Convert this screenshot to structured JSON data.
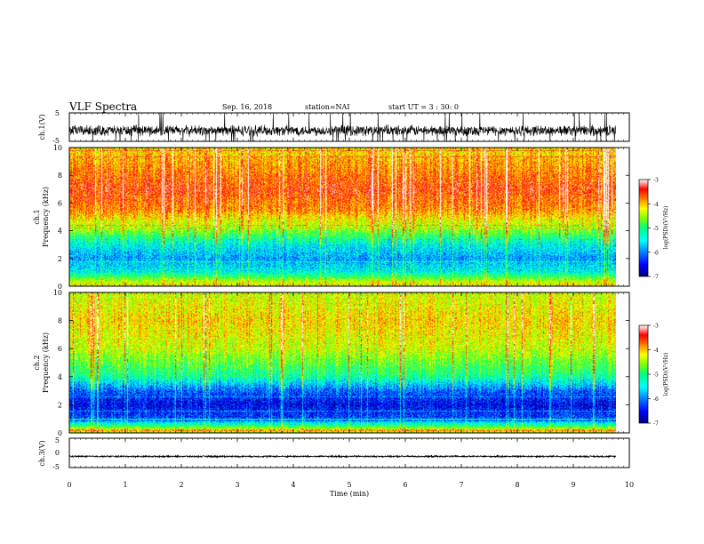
{
  "header": {
    "title": "VLF Spectra",
    "date": "Sep. 16, 2018",
    "station": "station=NAI",
    "start": "start  UT =  3 : 30: 0"
  },
  "chart_data": [
    {
      "type": "line",
      "name": "ch1-waveform",
      "ylabel": "ch.1(V)",
      "ylim": [
        -5,
        5
      ],
      "yticks": [
        "5",
        "-5"
      ],
      "xlim": [
        0,
        9.8
      ],
      "baseline_v": -1.2,
      "noise_amplitude_v": 2.2
    },
    {
      "type": "heatmap",
      "name": "ch1-spectrogram",
      "ylabel": "ch.1\nFrequency  (kHz)",
      "ylim": [
        0,
        10
      ],
      "yticks": [
        "0",
        "2",
        "4",
        "6",
        "8",
        "10"
      ],
      "xlim": [
        0,
        9.8
      ],
      "colorbar": {
        "label": "log(PSD)(V²/Hz)",
        "range": [
          -7,
          -3
        ],
        "ticks": [
          "-3",
          "-4",
          "-5",
          "-6",
          "-7"
        ]
      },
      "mean_profile": [
        {
          "freq_khz": 0.2,
          "log_psd": -4.4
        },
        {
          "freq_khz": 1.0,
          "log_psd": -5.6
        },
        {
          "freq_khz": 2.0,
          "log_psd": -6.0
        },
        {
          "freq_khz": 3.0,
          "log_psd": -5.6
        },
        {
          "freq_khz": 4.0,
          "log_psd": -4.8
        },
        {
          "freq_khz": 5.5,
          "log_psd": -3.9
        },
        {
          "freq_khz": 7.0,
          "log_psd": -3.6
        },
        {
          "freq_khz": 9.0,
          "log_psd": -4.0
        },
        {
          "freq_khz": 10.0,
          "log_psd": -4.3
        }
      ]
    },
    {
      "type": "heatmap",
      "name": "ch2-spectrogram",
      "ylabel": "ch.2\nFrequency  (kHz)",
      "ylim": [
        0,
        10
      ],
      "yticks": [
        "0",
        "2",
        "4",
        "6",
        "8",
        "10"
      ],
      "xlim": [
        0,
        9.8
      ],
      "colorbar": {
        "label": "log(PSD)(V²/Hz)",
        "range": [
          -7,
          -3
        ],
        "ticks": [
          "-3",
          "-4",
          "-5",
          "-6",
          "-7"
        ]
      },
      "mean_profile": [
        {
          "freq_khz": 0.2,
          "log_psd": -4.5
        },
        {
          "freq_khz": 1.0,
          "log_psd": -6.3
        },
        {
          "freq_khz": 2.0,
          "log_psd": -6.6
        },
        {
          "freq_khz": 3.0,
          "log_psd": -6.2
        },
        {
          "freq_khz": 4.0,
          "log_psd": -5.3
        },
        {
          "freq_khz": 6.0,
          "log_psd": -4.5
        },
        {
          "freq_khz": 8.0,
          "log_psd": -4.2
        },
        {
          "freq_khz": 10.0,
          "log_psd": -4.5
        }
      ]
    },
    {
      "type": "line",
      "name": "ch3-waveform",
      "ylabel": "ch.3(V)",
      "ylim": [
        -5,
        5
      ],
      "yticks": [
        "5",
        "0",
        "-5"
      ],
      "xlim": [
        0,
        9.8
      ],
      "baseline_v": -1.2,
      "noise_amplitude_v": 0.3
    }
  ],
  "xaxis": {
    "label": "Time  (min)",
    "range": [
      0,
      10
    ],
    "ticks": [
      "0",
      "1",
      "2",
      "3",
      "4",
      "5",
      "6",
      "7",
      "8",
      "9",
      "10"
    ]
  },
  "colors": {
    "colormap": [
      "#00007a",
      "#0000ff",
      "#0080ff",
      "#00ffff",
      "#00ff80",
      "#80ff00",
      "#ffff00",
      "#ff8000",
      "#ff0000",
      "#ffffff"
    ]
  }
}
